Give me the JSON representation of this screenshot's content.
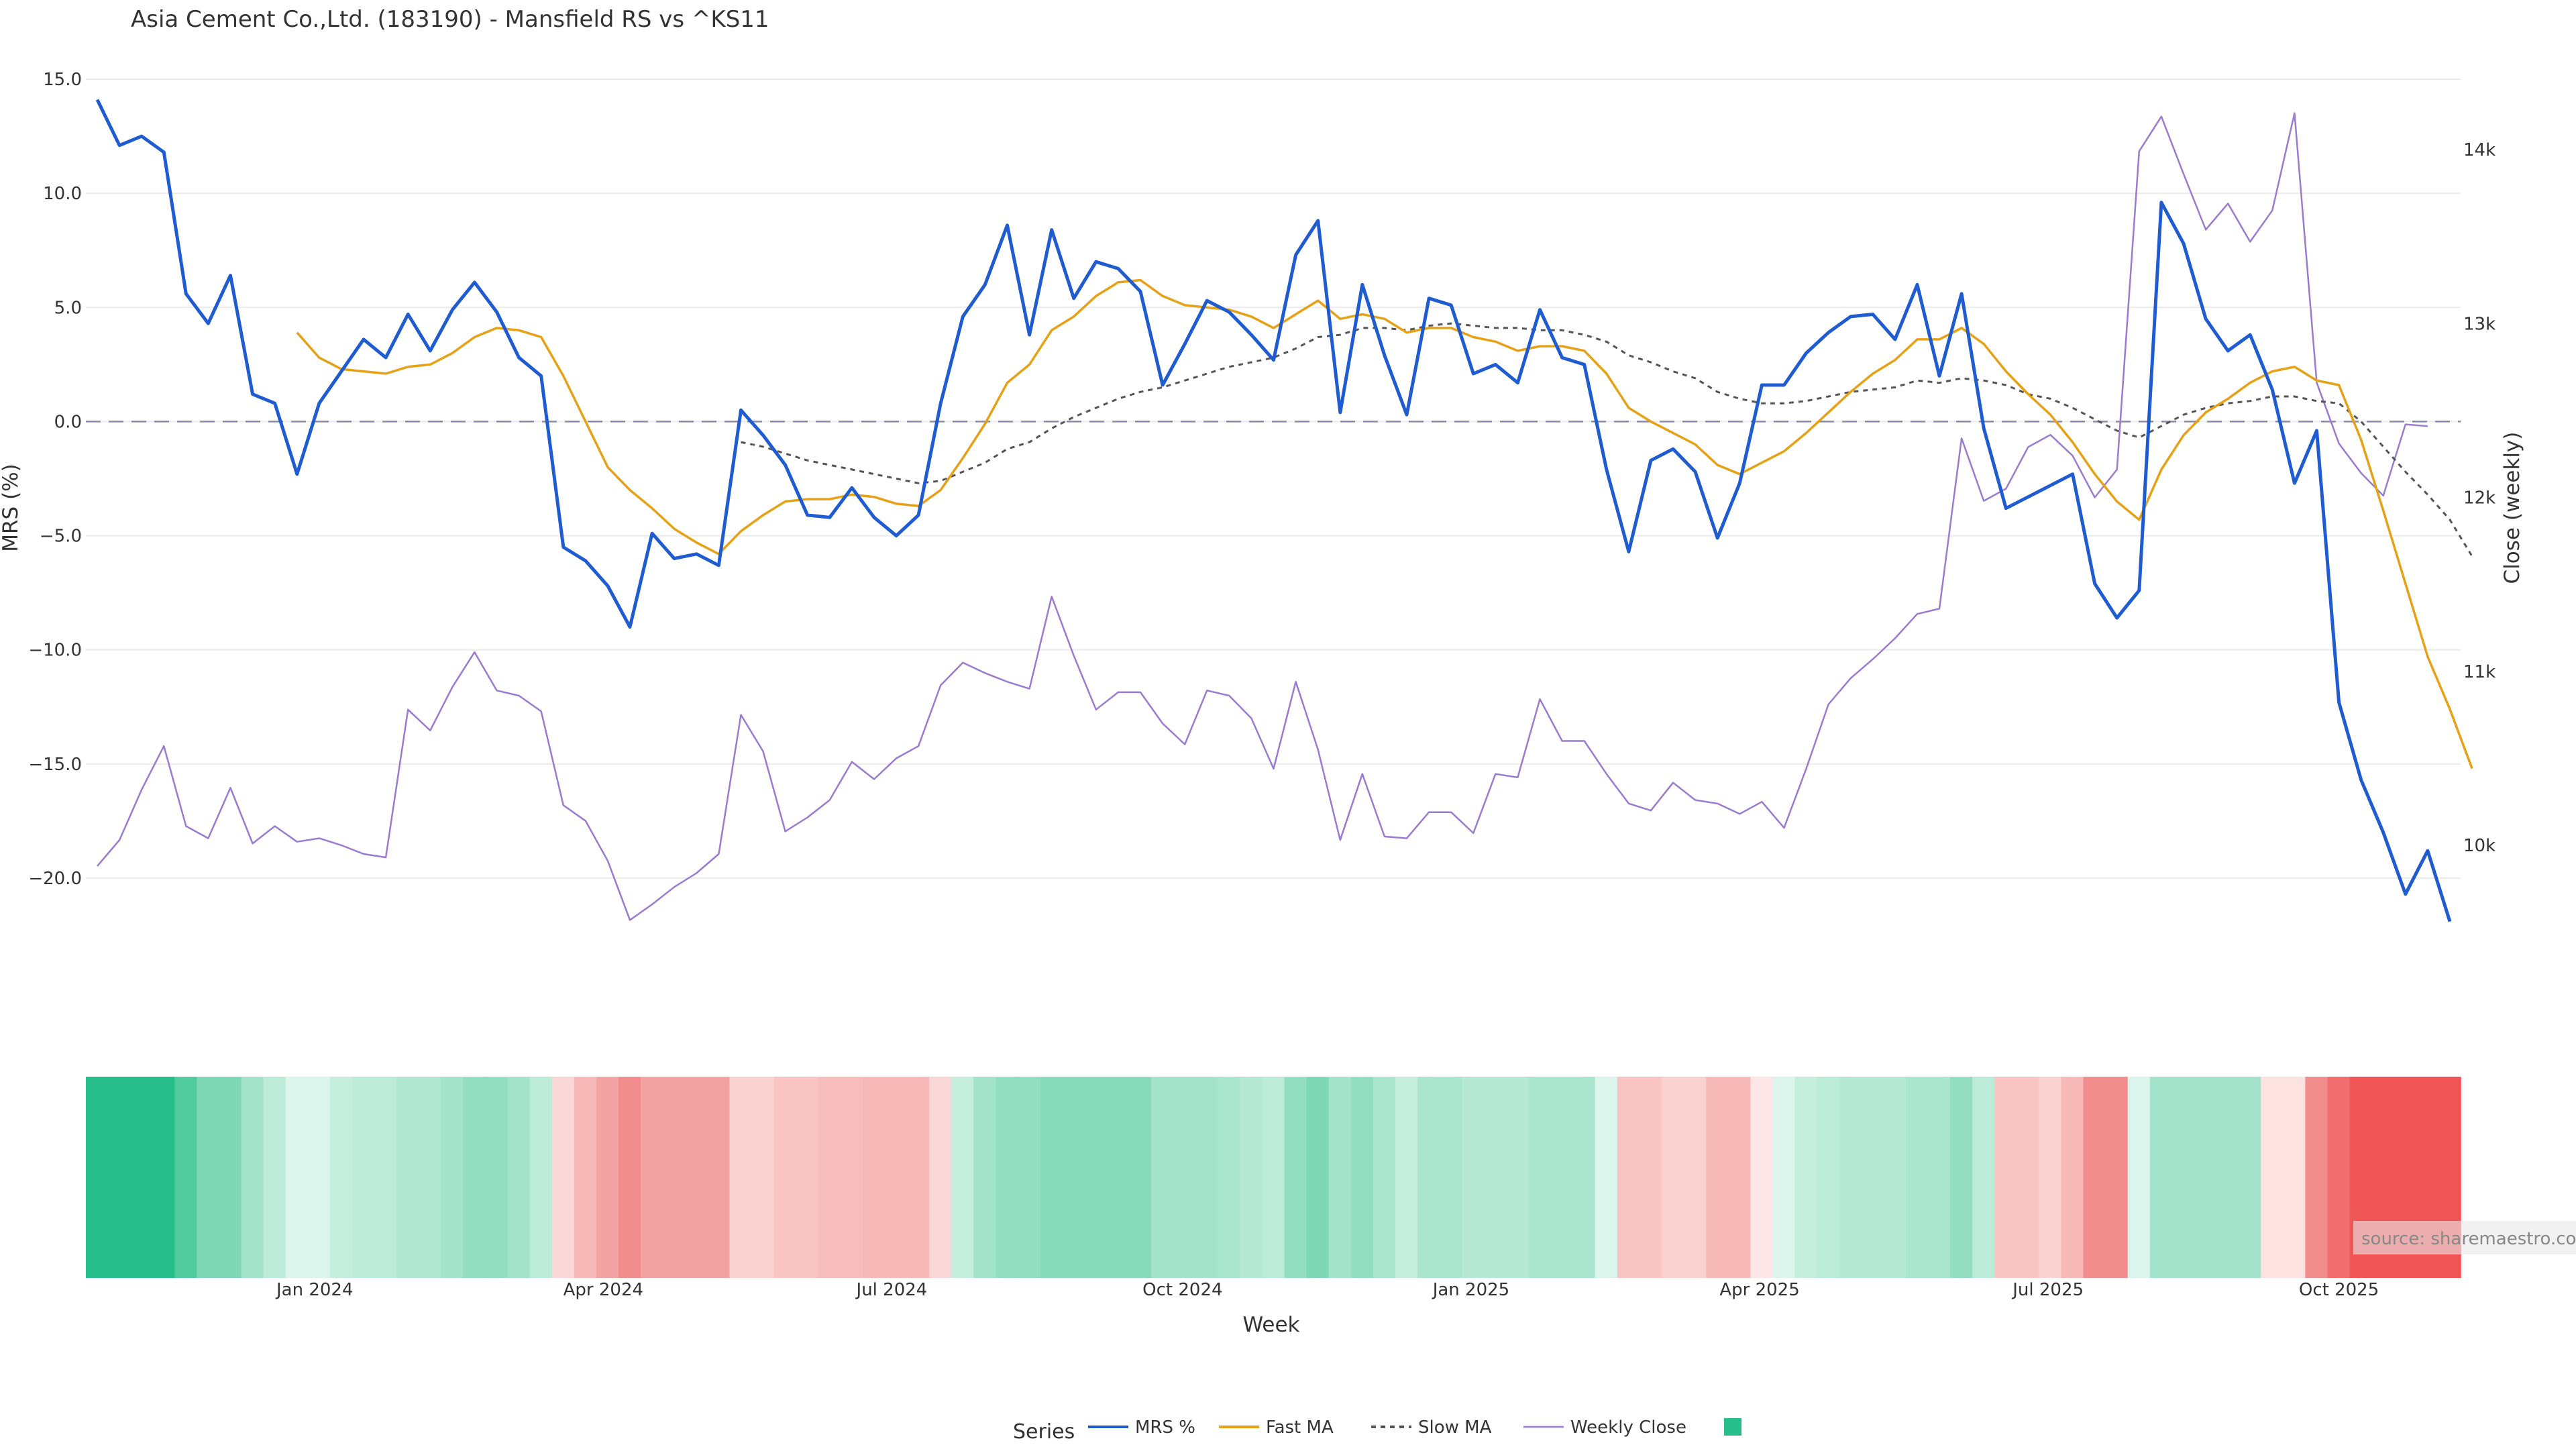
{
  "chart_data": {
    "type": "line",
    "title": "Asia Cement Co.,Ltd. (183190) - Mansfield RS vs ^KS11",
    "xlabel": "Week",
    "ylabel_left": "MRS (%)",
    "ylabel_right": "Close (weekly)",
    "ylim_left": [
      -23,
      15.5
    ],
    "ylim_right": [
      9400,
      14500
    ],
    "left_ticks": [
      "15.0",
      "10.0",
      "5.0",
      "0.0",
      "−5.0",
      "−10.0",
      "−15.0",
      "−20.0"
    ],
    "left_tick_values": [
      15,
      10,
      5,
      0,
      -5,
      -10,
      -15,
      -20
    ],
    "right_ticks": [
      "14k",
      "13k",
      "12k",
      "11k",
      "10k"
    ],
    "right_tick_values": [
      14000,
      13000,
      12000,
      11000,
      10000
    ],
    "x_ticks": [
      "Jan 2024",
      "Apr 2024",
      "Jul 2024",
      "Oct 2024",
      "Jan 2025",
      "Apr 2025",
      "Jul 2025",
      "Oct 2025"
    ],
    "x_tick_weeks": [
      9.8,
      22.8,
      35.8,
      48.9,
      61.9,
      74.9,
      87.9,
      101
    ],
    "zero_line": 0,
    "grid": true,
    "legend_position": "bottom",
    "legend_title": "Series",
    "series": [
      {
        "name": "MRS %",
        "color": "#1f5bd1",
        "values": [
          14.1,
          12.1,
          12.5,
          11.8,
          5.6,
          4.3,
          6.4,
          1.2,
          0.8,
          -2.3,
          0.8,
          2.2,
          3.6,
          2.8,
          4.7,
          3.1,
          4.9,
          6.1,
          4.8,
          2.8,
          2.0,
          -5.5,
          -6.1,
          -7.2,
          -9.0,
          -4.9,
          -6.0,
          -5.8,
          -6.3,
          0.5,
          -0.6,
          -1.9,
          -4.1,
          -4.2,
          -2.9,
          -4.2,
          -5.0,
          -4.1,
          0.8,
          4.6,
          6.0,
          8.6,
          3.8,
          8.4,
          5.4,
          7.0,
          6.7,
          5.7,
          1.6,
          3.4,
          5.3,
          4.8,
          3.8,
          2.7,
          7.3,
          8.8,
          0.4,
          6.0,
          2.9,
          0.3,
          5.4,
          5.1,
          2.1,
          2.5,
          1.7,
          4.9,
          2.8,
          2.5,
          -2.1,
          -5.7,
          -1.7,
          -1.2,
          -2.2,
          -5.1,
          -2.7,
          1.6,
          1.6,
          3.0,
          3.9,
          4.6,
          4.7,
          3.6,
          6.0,
          2.0,
          5.6,
          -0.3,
          -3.8,
          -3.3,
          -2.8,
          -2.3,
          -7.1,
          -8.6,
          -7.4,
          9.6,
          7.8,
          4.5,
          3.1,
          3.8,
          1.4,
          -2.7,
          -0.4,
          -12.3,
          -15.7,
          -18.0,
          -20.7,
          -18.8,
          -21.9
        ]
      },
      {
        "name": "Fast MA",
        "color": "#e6a117",
        "values": [
          null,
          null,
          null,
          null,
          null,
          null,
          null,
          null,
          null,
          3.9,
          2.8,
          2.3,
          2.2,
          2.1,
          2.4,
          2.5,
          3.0,
          3.7,
          4.1,
          4.0,
          3.7,
          2.0,
          0.0,
          -2.0,
          -3.0,
          -3.8,
          -4.7,
          -5.3,
          -5.8,
          -4.8,
          -4.1,
          -3.5,
          -3.4,
          -3.4,
          -3.2,
          -3.3,
          -3.6,
          -3.7,
          -3.0,
          -1.6,
          -0.1,
          1.7,
          2.5,
          4.0,
          4.6,
          5.5,
          6.1,
          6.2,
          5.5,
          5.1,
          5.0,
          4.9,
          4.6,
          4.1,
          4.7,
          5.3,
          4.5,
          4.7,
          4.5,
          3.9,
          4.1,
          4.1,
          3.7,
          3.5,
          3.1,
          3.3,
          3.3,
          3.1,
          2.1,
          0.6,
          0.0,
          -0.5,
          -1.0,
          -1.9,
          -2.3,
          -1.8,
          -1.3,
          -0.5,
          0.4,
          1.3,
          2.1,
          2.7,
          3.6,
          3.6,
          4.1,
          3.4,
          2.2,
          1.2,
          0.3,
          -0.9,
          -2.3,
          -3.5,
          -4.3,
          -2.1,
          -0.6,
          0.4,
          1.0,
          1.7,
          2.2,
          2.4,
          1.8,
          1.6,
          -0.8,
          -3.9,
          -7.1,
          -10.3,
          -12.6,
          -15.2
        ]
      },
      {
        "name": "Slow MA",
        "color": "#555555",
        "dash": true,
        "values": [
          null,
          null,
          null,
          null,
          null,
          null,
          null,
          null,
          null,
          null,
          null,
          null,
          null,
          null,
          null,
          null,
          null,
          null,
          null,
          null,
          null,
          null,
          null,
          null,
          null,
          null,
          null,
          null,
          null,
          -0.9,
          -1.1,
          -1.4,
          -1.7,
          -1.9,
          -2.1,
          -2.3,
          -2.5,
          -2.7,
          -2.6,
          -2.2,
          -1.8,
          -1.2,
          -0.9,
          -0.3,
          0.2,
          0.6,
          1.0,
          1.3,
          1.5,
          1.8,
          2.1,
          2.4,
          2.6,
          2.8,
          3.2,
          3.7,
          3.8,
          4.1,
          4.1,
          4.0,
          4.2,
          4.3,
          4.2,
          4.1,
          4.1,
          4.0,
          4.0,
          3.8,
          3.5,
          2.9,
          2.6,
          2.2,
          1.9,
          1.3,
          1.0,
          0.8,
          0.8,
          0.9,
          1.1,
          1.3,
          1.4,
          1.5,
          1.8,
          1.7,
          1.9,
          1.8,
          1.6,
          1.2,
          1.0,
          0.6,
          0.1,
          -0.4,
          -0.7,
          -0.2,
          0.3,
          0.6,
          0.8,
          0.9,
          1.1,
          1.1,
          0.9,
          0.8,
          0.0,
          -1.1,
          -2.2,
          -3.2,
          -4.3,
          -5.9
        ]
      },
      {
        "name": "Weekly Close",
        "color": "#9a7bd0",
        "axis": "right",
        "values": [
          9880,
          10030,
          10320,
          10570,
          10110,
          10040,
          10330,
          10010,
          10110,
          10020,
          10040,
          10000,
          9950,
          9930,
          10780,
          10660,
          10910,
          11110,
          10890,
          10860,
          10770,
          10230,
          10140,
          9910,
          9570,
          9660,
          9760,
          9840,
          9950,
          10750,
          10540,
          10080,
          10160,
          10260,
          10480,
          10380,
          10500,
          10570,
          10920,
          11050,
          10990,
          10940,
          10900,
          11430,
          11090,
          10780,
          10880,
          10880,
          10700,
          10580,
          10890,
          10860,
          10730,
          10440,
          10940,
          10550,
          10030,
          10410,
          10050,
          10040,
          10190,
          10190,
          10070,
          10410,
          10390,
          10840,
          10600,
          10600,
          10410,
          10240,
          10200,
          10360,
          10260,
          10240,
          10180,
          10250,
          10100,
          10440,
          10810,
          10960,
          11070,
          11190,
          11330,
          11360,
          12340,
          11980,
          12050,
          12290,
          12360,
          12240,
          12000,
          12160,
          13990,
          14190,
          13860,
          13540,
          13690,
          13470,
          13650,
          14210,
          12660,
          12310,
          12140,
          12010,
          12420,
          12410
        ]
      }
    ],
    "heat_colors": [
      "#26bf8c",
      "#26bf8c",
      "#26bf8c",
      "#26bf8c",
      "#52cb9f",
      "#7ed8b7",
      "#7ed8b7",
      "#a3e3cb",
      "#bdebda",
      "#dbf5ec",
      "#dbf5ec",
      "#c6eedf",
      "#bdebda",
      "#bdebda",
      "#afe7d2",
      "#afe7d2",
      "#a3e3cb",
      "#93ddc2",
      "#93ddc2",
      "#a3e3cb",
      "#bdebda",
      "#fad7d7",
      "#f7b8b8",
      "#f4a3a3",
      "#f18d8d",
      "#f4a3a3",
      "#f4a3a3",
      "#f4a3a3",
      "#f4a3a3",
      "#fad1d1",
      "#fad1d1",
      "#f8c4c4",
      "#f8c4c4",
      "#f7bdbd",
      "#f7bdbd",
      "#f7b8b8",
      "#f7b8b8",
      "#f7b8b8",
      "#fad7d7",
      "#c6eedf",
      "#a3e3cb",
      "#93ddc2",
      "#93ddc2",
      "#88dabc",
      "#88dabc",
      "#88dabc",
      "#88dabc",
      "#88dabc",
      "#a3e3cb",
      "#a3e3cb",
      "#a3e3cb",
      "#a9e5cf",
      "#b5e8d5",
      "#bdebda",
      "#93ddc2",
      "#7ed8b7",
      "#a3e3cb",
      "#93ddc2",
      "#a9e5cf",
      "#c6eedf",
      "#a9e5cf",
      "#a9e5cf",
      "#b5e8d5",
      "#b5e8d5",
      "#b5e8d5",
      "#a9e5cf",
      "#a9e5cf",
      "#a9e5cf",
      "#dbf5ec",
      "#f8c4c4",
      "#f8c4c4",
      "#fad1d1",
      "#fad1d1",
      "#f7b8b8",
      "#f7b8b8",
      "#fde6e6",
      "#dbf5ec",
      "#c6eedf",
      "#bdebda",
      "#b5e8d5",
      "#b5e8d5",
      "#b5e8d5",
      "#a9e5cf",
      "#a9e5cf",
      "#93ddc2",
      "#bdebda",
      "#f8c4c4",
      "#f8c4c4",
      "#fad1d1",
      "#f7b8b8",
      "#f18d8d",
      "#f18d8d",
      "#dbf5ec",
      "#a3e3cb",
      "#a3e3cb",
      "#a3e3cb",
      "#a3e3cb",
      "#a3e3cb",
      "#fde2e2",
      "#fde2e2",
      "#f18d8d",
      "#f16e6e",
      "#f05656",
      "#f05656",
      "#f05656",
      "#f05656",
      "#f05656"
    ]
  },
  "source_text": "source: sharemaestro.com"
}
